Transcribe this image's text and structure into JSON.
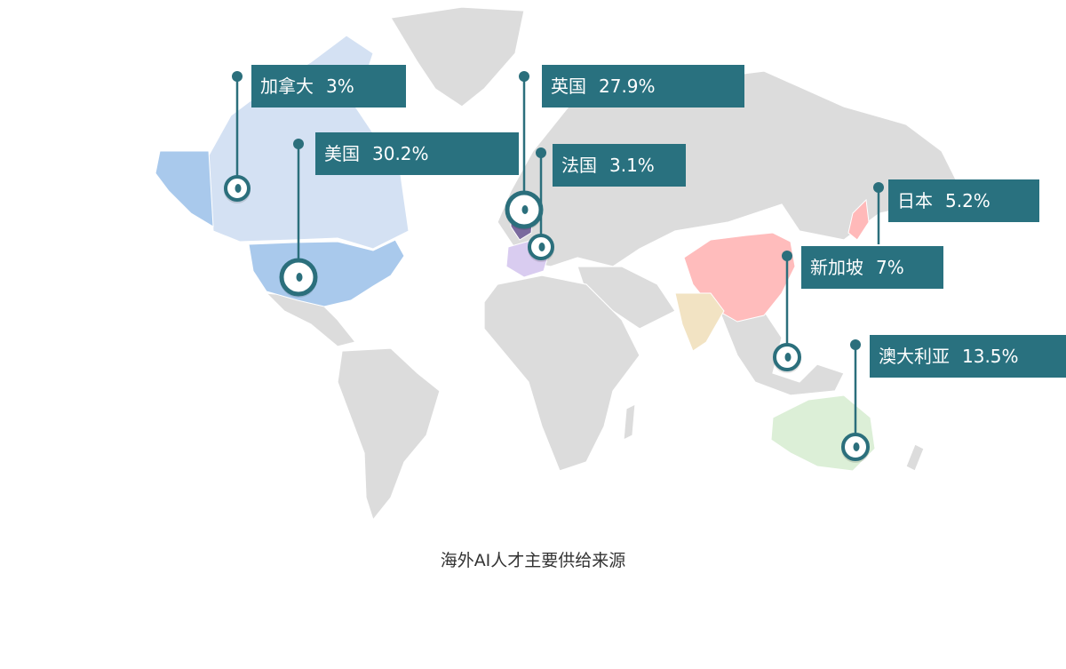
{
  "caption": "海外AI人才主要供给来源",
  "colors": {
    "label_bg": "#29717f",
    "marker": "#2b6f7c",
    "land": "#dcdcdc"
  },
  "regions": [
    {
      "id": "canada",
      "name": "加拿大",
      "value": "3%",
      "color": "#d4e1f3"
    },
    {
      "id": "usa",
      "name": "美国",
      "value": "30.2%",
      "color": "#a9c9ec"
    },
    {
      "id": "uk",
      "name": "英国",
      "value": "27.9%",
      "color": "#7a6a9e"
    },
    {
      "id": "france",
      "name": "法国",
      "value": "3.1%",
      "color": "#d9ccf0"
    },
    {
      "id": "japan",
      "name": "日本",
      "value": "5.2%",
      "color": "#ffb9b9"
    },
    {
      "id": "singapore",
      "name": "新加坡",
      "value": "7%",
      "color": "#ffb9b9"
    },
    {
      "id": "australia",
      "name": "澳大利亚",
      "value": "13.5%",
      "color": "#dcefd7"
    },
    {
      "id": "china",
      "name": "",
      "value": "",
      "color": "#ffbcbc"
    },
    {
      "id": "india",
      "name": "",
      "value": "",
      "color": "#f2e3c3"
    }
  ]
}
